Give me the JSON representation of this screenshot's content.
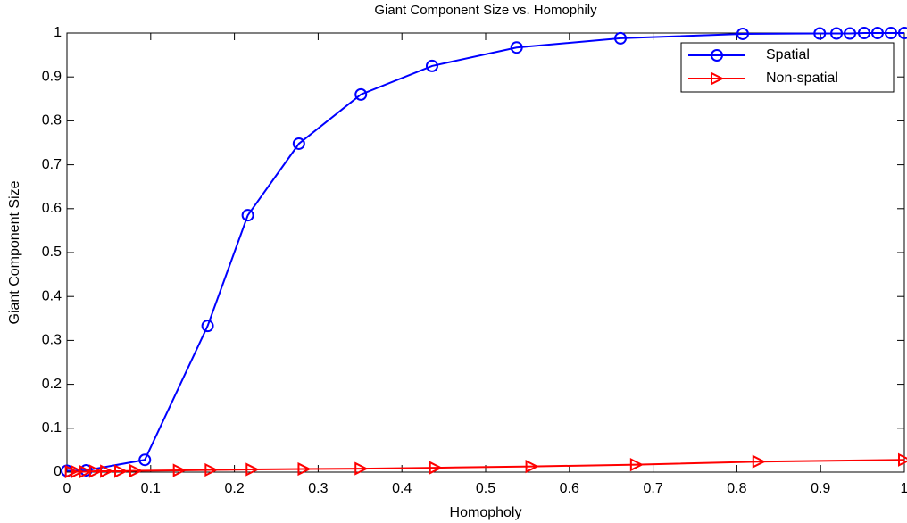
{
  "chart_data": {
    "type": "line",
    "title": "Giant Component Size vs. Homophily",
    "x_label": "Homopholy",
    "y_label": "Giant Component Size",
    "xlim": [
      0,
      1
    ],
    "ylim": [
      0,
      1
    ],
    "xticks": [
      0,
      0.1,
      0.2,
      0.3,
      0.4,
      0.5,
      0.6,
      0.7,
      0.8,
      0.9,
      1
    ],
    "yticks": [
      0,
      0.1,
      0.2,
      0.3,
      0.4,
      0.5,
      0.6,
      0.7,
      0.8,
      0.9,
      1
    ],
    "grid": false,
    "legend_position": "northeast",
    "series": [
      {
        "name": "Spatial",
        "color": "#0000ff",
        "marker": "circle",
        "x": [
          0,
          0.023,
          0.093,
          0.168,
          0.216,
          0.277,
          0.351,
          0.436,
          0.537,
          0.661,
          0.807,
          0.899,
          0.919,
          0.935,
          0.952,
          0.968,
          0.984,
          1.0
        ],
        "values": [
          0.003,
          0.004,
          0.028,
          0.333,
          0.585,
          0.748,
          0.86,
          0.925,
          0.967,
          0.988,
          0.998,
          0.999,
          0.999,
          0.999,
          1.0,
          1.0,
          1.0,
          1.0
        ]
      },
      {
        "name": "Non-spatial",
        "color": "#ff0000",
        "marker": "triangle-right",
        "x": [
          0.005,
          0.012,
          0.022,
          0.034,
          0.047,
          0.064,
          0.082,
          0.134,
          0.172,
          0.221,
          0.283,
          0.351,
          0.44,
          0.555,
          0.68,
          0.826,
          1.0
        ],
        "values": [
          0.001,
          0.001,
          0.001,
          0.002,
          0.002,
          0.002,
          0.003,
          0.004,
          0.005,
          0.006,
          0.007,
          0.008,
          0.01,
          0.013,
          0.017,
          0.024,
          0.028
        ]
      }
    ]
  }
}
